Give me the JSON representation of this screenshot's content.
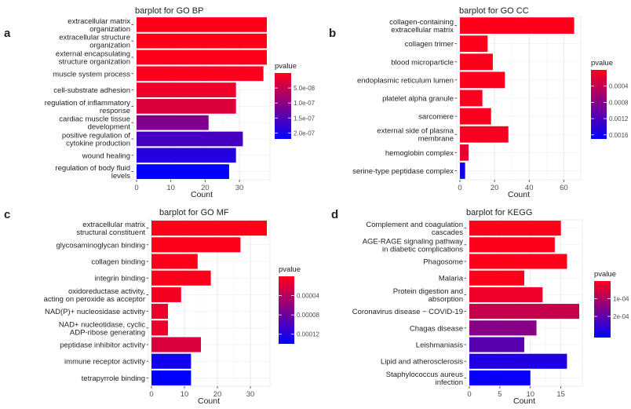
{
  "figure": "GO and KEGG enrichment barplots",
  "chart_data": [
    {
      "panel": "a",
      "type": "bar",
      "orientation": "horizontal",
      "title": "barplot for GO BP",
      "xlabel": "Count",
      "ylabel": "",
      "xlim": [
        0,
        38
      ],
      "xticks": [
        0,
        10,
        20,
        30
      ],
      "categories": [
        "extracellular matrix organization",
        "extracellular structure organization",
        "external encapsulating structure organization",
        "muscle system process",
        "cell-substrate adhesion",
        "regulation of inflammatory response",
        "cardiac muscle tissue development",
        "positive regulation of cytokine production",
        "wound healing",
        "regulation of body fluid levels"
      ],
      "label_lines": [
        [
          "extracellular matrix",
          "organization"
        ],
        [
          "extracellular structure",
          "organization"
        ],
        [
          "external encapsulating",
          "structure organization"
        ],
        [
          "muscle system process"
        ],
        [
          "cell-substrate adhesion"
        ],
        [
          "regulation of inflammatory",
          "response"
        ],
        [
          "cardiac muscle tissue",
          "development"
        ],
        [
          "positive regulation of",
          "cytokine production"
        ],
        [
          "wound healing"
        ],
        [
          "regulation of body fluid",
          "levels"
        ]
      ],
      "values": [
        38,
        38,
        38,
        37,
        29,
        29,
        21,
        31,
        29,
        27
      ],
      "pvalues": [
        1e-10,
        1e-10,
        1e-10,
        3e-09,
        1.5e-08,
        3e-08,
        1.1e-07,
        1.6e-07,
        1.9e-07,
        2.2e-07
      ],
      "legend": {
        "title": "pvalue",
        "min": 0,
        "max": 2.2e-07,
        "ticks": [
          5e-08,
          1e-07,
          1.5e-07,
          2e-07
        ],
        "tick_labels": [
          "5.0e-08",
          "1.0e-07",
          "1.5e-07",
          "2.0e-07"
        ],
        "position": "right"
      }
    },
    {
      "panel": "b",
      "type": "bar",
      "orientation": "horizontal",
      "title": "barplot for GO CC",
      "xlabel": "Count",
      "ylabel": "",
      "xlim": [
        0,
        68
      ],
      "xticks": [
        0,
        20,
        40,
        60
      ],
      "categories": [
        "collagen-containing extracellular matrix",
        "collagen trimer",
        "blood microparticle",
        "endoplasmic reticulum lumen",
        "platelet alpha granule",
        "sarcomere",
        "external side of plasma membrane",
        "hemoglobin complex",
        "serine-type peptidase complex"
      ],
      "label_lines": [
        [
          "collagen-containing",
          "extracellular matrix"
        ],
        [
          "collagen trimer"
        ],
        [
          "blood microparticle"
        ],
        [
          "endoplasmic reticulum lumen"
        ],
        [
          "platelet alpha granule"
        ],
        [
          "sarcomere"
        ],
        [
          "external side of plasma",
          "membrane"
        ],
        [
          "hemoglobin complex"
        ],
        [
          "serine-type peptidase complex"
        ]
      ],
      "values": [
        66,
        16,
        19,
        26,
        13,
        18,
        28,
        5,
        3
      ],
      "pvalues": [
        1e-20,
        5e-06,
        1e-05,
        2e-05,
        3e-05,
        4e-05,
        5e-05,
        0.00015,
        0.0016
      ],
      "legend": {
        "title": "pvalue",
        "min": 0,
        "max": 0.0017,
        "ticks": [
          0.0004,
          0.0008,
          0.0012,
          0.0016
        ],
        "tick_labels": [
          "0.0004",
          "0.0008",
          "0.0012",
          "0.0016"
        ],
        "position": "right"
      }
    },
    {
      "panel": "c",
      "type": "bar",
      "orientation": "horizontal",
      "title": "barplot for GO MF",
      "xlabel": "Count",
      "ylabel": "",
      "xlim": [
        0,
        35
      ],
      "xticks": [
        0,
        10,
        20,
        30
      ],
      "categories": [
        "extracellular matrix structural constituent",
        "glycosaminoglycan binding",
        "collagen binding",
        "integrin binding",
        "oxidoreductase activity, acting on peroxide as acceptor",
        "NAD(P)+ nucleosidase activity",
        "NAD+ nucleotidase, cyclic ADP-ribose generating",
        "peptidase inhibitor activity",
        "immune receptor activity",
        "tetrapyrrole binding"
      ],
      "label_lines": [
        [
          "extracellular matrix",
          "structural constituent"
        ],
        [
          "glycosaminoglycan binding"
        ],
        [
          "collagen binding"
        ],
        [
          "integrin binding"
        ],
        [
          "oxidoreductase activity,",
          "acting on peroxide as acceptor"
        ],
        [
          "NAD(P)+ nucleosidase activity"
        ],
        [
          "NAD+ nucleotidase, cyclic",
          "ADP-ribose generating"
        ],
        [
          "peptidase inhibitor activity"
        ],
        [
          "immune receptor activity"
        ],
        [
          "tetrapyrrole binding"
        ]
      ],
      "values": [
        35,
        27,
        14,
        18,
        9,
        5,
        5,
        15,
        12,
        12
      ],
      "pvalues": [
        1e-15,
        1e-08,
        1e-06,
        2e-06,
        5e-06,
        1e-05,
        1e-05,
        2e-05,
        0.00013,
        0.00014
      ],
      "legend": {
        "title": "pvalue",
        "min": 0,
        "max": 0.00014,
        "ticks": [
          4e-05,
          8e-05,
          0.00012
        ],
        "tick_labels": [
          "0.00004",
          "0.00008",
          "0.00012"
        ],
        "position": "right"
      }
    },
    {
      "panel": "d",
      "type": "bar",
      "orientation": "horizontal",
      "title": "barplot for KEGG",
      "xlabel": "Count",
      "ylabel": "",
      "xlim": [
        0,
        18
      ],
      "xticks": [
        0,
        5,
        10,
        15
      ],
      "categories": [
        "Complement and coagulation cascades",
        "AGE-RAGE signaling pathway in diabetic complications",
        "Phagosome",
        "Malaria",
        "Protein digestion and absorption",
        "Coronavirus disease - COVID-19",
        "Chagas disease",
        "Leishmaniasis",
        "Lipid and atherosclerosis",
        "Staphylococcus aureus infection"
      ],
      "label_lines": [
        [
          "Complement and coagulation",
          "cascades"
        ],
        [
          "AGE-RAGE signaling pathway",
          "in diabetic complications"
        ],
        [
          "Phagosome"
        ],
        [
          "Malaria"
        ],
        [
          "Protein digestion and",
          "absorption"
        ],
        [
          "Coronavirus disease − COVID-19"
        ],
        [
          "Chagas disease"
        ],
        [
          "Leishmaniasis"
        ],
        [
          "Lipid and atherosclerosis"
        ],
        [
          "Staphylococcus aureus",
          "infection"
        ]
      ],
      "values": [
        15,
        14,
        16,
        9,
        12,
        18,
        11,
        9,
        16,
        10
      ],
      "pvalues": [
        1e-10,
        1e-08,
        5e-07,
        1e-06,
        2e-05,
        7e-05,
        0.00015,
        0.00021,
        0.00028,
        0.00031
      ],
      "legend": {
        "title": "pvalue",
        "min": 0,
        "max": 0.00032,
        "ticks": [
          0.0001,
          0.0002
        ],
        "tick_labels": [
          "1e-04",
          "2e-04"
        ],
        "position": "right"
      }
    }
  ]
}
